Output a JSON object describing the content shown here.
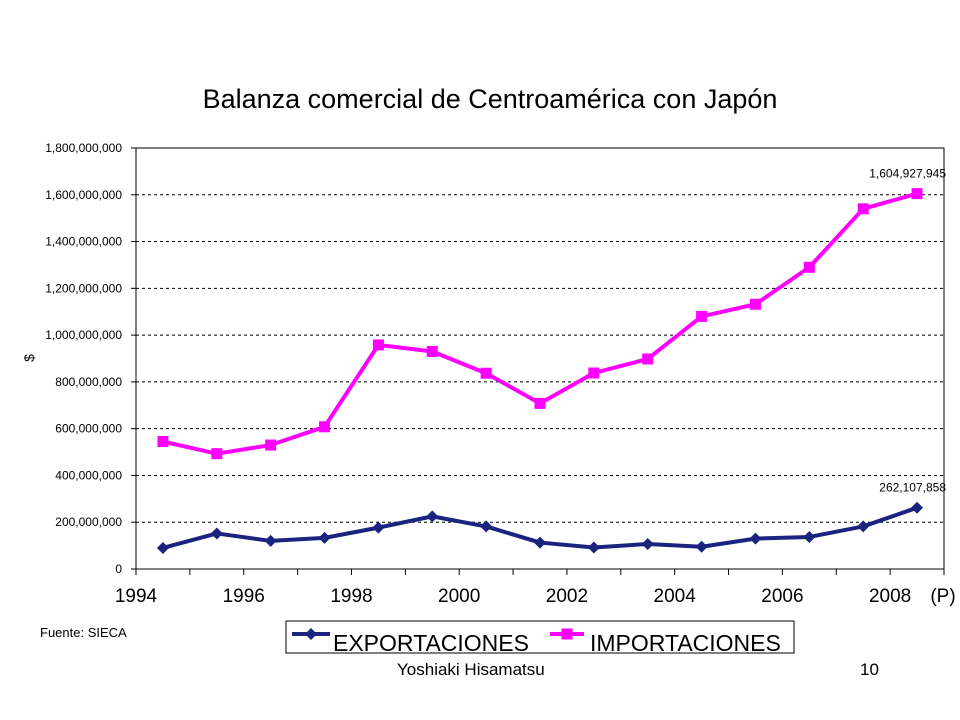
{
  "chart_data": {
    "type": "line",
    "title": "Balanza comercial de Centroamérica con Japón",
    "ylabel": "$",
    "xlabel": "",
    "ylim": [
      0,
      1800000000
    ],
    "yticks": [
      "0",
      "200,000,000",
      "400,000,000",
      "600,000,000",
      "800,000,000",
      "1,000,000,000",
      "1,200,000,000",
      "1,400,000,000",
      "1,600,000,000",
      "1,800,000,000"
    ],
    "x": [
      1994,
      1995,
      1996,
      1997,
      1998,
      1999,
      2000,
      2001,
      2002,
      2003,
      2004,
      2005,
      2006,
      2007,
      2008
    ],
    "xtick_labels": [
      "1994",
      "1996",
      "1998",
      "2000",
      "2002",
      "2004",
      "2006",
      "2008",
      "(P)"
    ],
    "grid": "horizontal dashed",
    "legend": "bottom",
    "source": "Fuente: SIECA",
    "series": [
      {
        "name": "EXPORTACIONES",
        "color": "#1a237e",
        "marker": "diamond",
        "values": [
          90000000,
          152000000,
          120000000,
          133000000,
          177000000,
          225000000,
          182000000,
          113000000,
          92000000,
          107000000,
          95000000,
          130000000,
          137000000,
          182000000,
          262107858
        ]
      },
      {
        "name": "IMPORTACIONES",
        "color": "#ff00ff",
        "marker": "square",
        "values": [
          545000000,
          493000000,
          530000000,
          608000000,
          958000000,
          930000000,
          837000000,
          708000000,
          838000000,
          898000000,
          1080000000,
          1132000000,
          1290000000,
          1540000000,
          1604927945
        ]
      }
    ],
    "annotations": [
      {
        "text": "1,604,927,945",
        "series": 1,
        "index": 14
      },
      {
        "text": "262,107,858",
        "series": 0,
        "index": 14
      }
    ]
  },
  "footer": {
    "author": "Yoshiaki Hisamatsu",
    "page": "10"
  }
}
